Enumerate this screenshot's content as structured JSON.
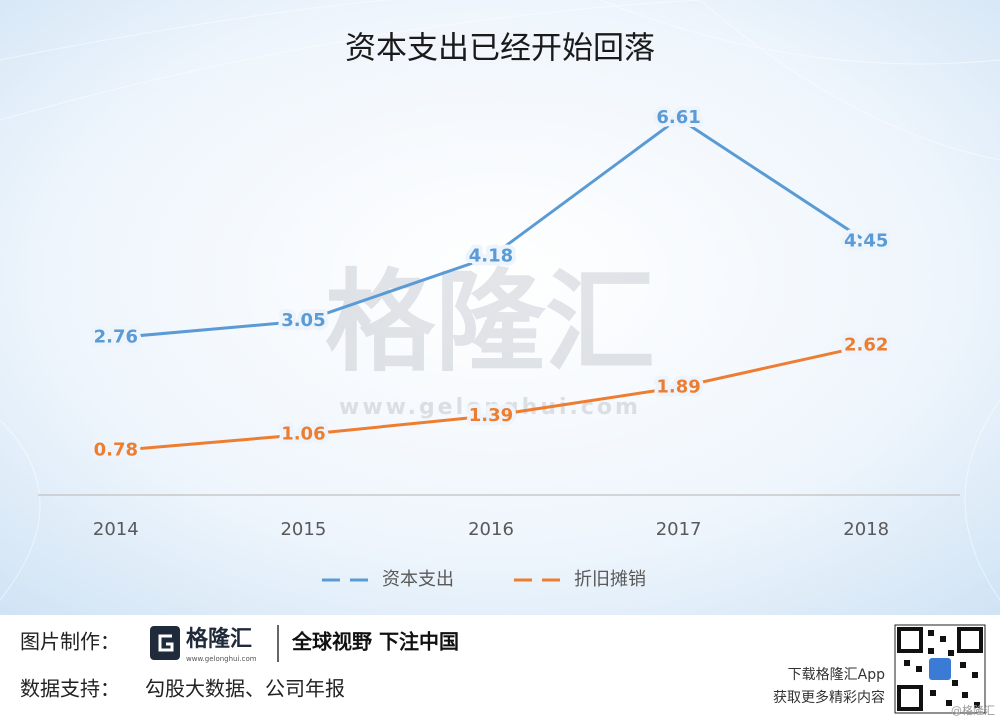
{
  "chart_data": {
    "type": "line",
    "title": "资本支出已经开始回落",
    "categories": [
      "2014",
      "2015",
      "2016",
      "2017",
      "2018"
    ],
    "series": [
      {
        "name": "资本支出",
        "color": "#5b9bd5",
        "values": [
          2.76,
          3.05,
          4.18,
          6.61,
          4.45
        ]
      },
      {
        "name": "折旧摊销",
        "color": "#ed7d31",
        "values": [
          0.78,
          1.06,
          1.39,
          1.89,
          2.62
        ]
      }
    ],
    "ylim": [
      0,
      7
    ]
  },
  "watermark": {
    "text": "格隆汇",
    "url": "www.gelonghui.com"
  },
  "footer": {
    "made_by_label": "图片制作：",
    "logo_text": "格隆汇",
    "logo_url": "www.gelonghui.com",
    "slogan": "全球视野 下注中国",
    "data_label": "数据支持：",
    "data_source": "勾股大数据、公司年报",
    "app_line1": "下载格隆汇App",
    "app_line2": "获取更多精彩内容",
    "credit": "@格隆汇"
  }
}
